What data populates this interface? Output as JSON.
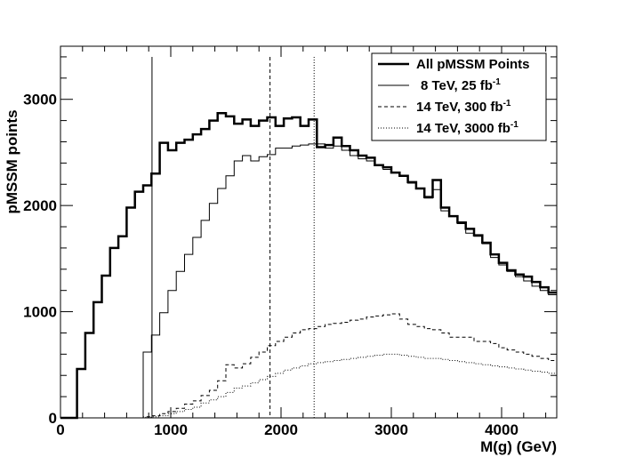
{
  "chart_data": {
    "type": "line",
    "title": "",
    "xlabel": "M(g) (GeV)",
    "ylabel": "pMSSM points",
    "xlim": [
      0,
      4500
    ],
    "ylim": [
      0,
      3500
    ],
    "xticks": [
      0,
      1000,
      2000,
      3000,
      4000
    ],
    "xtick_labels": [
      "0",
      "1000",
      "2000",
      "3000",
      "4000"
    ],
    "yticks": [
      0,
      1000,
      2000,
      3000
    ],
    "ytick_labels": [
      "0",
      "1000",
      "2000",
      "3000"
    ],
    "bin_width": 75,
    "bin_start": 0,
    "legend_position": "top-right",
    "series": [
      {
        "name": "All pMSSM Points",
        "style": "solid-thick",
        "values": [
          0,
          0,
          460,
          800,
          1090,
          1340,
          1600,
          1710,
          1980,
          2130,
          2190,
          2300,
          2590,
          2520,
          2590,
          2620,
          2670,
          2720,
          2800,
          2870,
          2840,
          2770,
          2810,
          2750,
          2800,
          2830,
          2750,
          2820,
          2830,
          2750,
          2810,
          2550,
          2570,
          2640,
          2560,
          2520,
          2470,
          2450,
          2380,
          2360,
          2310,
          2280,
          2220,
          2160,
          2080,
          2240,
          1980,
          1900,
          1840,
          1780,
          1720,
          1650,
          1540,
          1460,
          1390,
          1350,
          1330,
          1280,
          1230,
          1180
        ]
      },
      {
        "name": "8 TeV,   25 fb",
        "name_sup": "-1",
        "style": "solid-thin",
        "values": [
          0,
          0,
          0,
          0,
          0,
          0,
          0,
          0,
          0,
          0,
          620,
          780,
          990,
          1200,
          1380,
          1540,
          1700,
          1860,
          2020,
          2160,
          2280,
          2420,
          2470,
          2420,
          2460,
          2480,
          2540,
          2540,
          2560,
          2570,
          2580,
          2580,
          2540,
          2560,
          2520,
          2470,
          2440,
          2420,
          2380,
          2340,
          2310,
          2280,
          2210,
          2160,
          2070,
          2150,
          1950,
          1900,
          1830,
          1740,
          1710,
          1640,
          1510,
          1440,
          1380,
          1330,
          1290,
          1240,
          1200,
          1160
        ]
      },
      {
        "name": "14 TeV,  300 fb",
        "name_sup": "-1",
        "style": "dashed",
        "values": [
          0,
          0,
          0,
          0,
          0,
          0,
          0,
          0,
          0,
          0,
          10,
          20,
          40,
          60,
          90,
          130,
          160,
          210,
          260,
          350,
          500,
          470,
          510,
          570,
          620,
          680,
          720,
          760,
          800,
          830,
          840,
          860,
          880,
          890,
          900,
          920,
          930,
          950,
          960,
          970,
          980,
          930,
          880,
          860,
          840,
          830,
          800,
          760,
          760,
          760,
          720,
          720,
          700,
          660,
          640,
          620,
          600,
          580,
          560,
          540
        ]
      },
      {
        "name": "14 TeV, 3000 fb",
        "name_sup": "-1",
        "style": "dotted",
        "values": [
          0,
          0,
          0,
          0,
          0,
          0,
          0,
          0,
          0,
          0,
          5,
          10,
          20,
          40,
          60,
          80,
          100,
          140,
          170,
          200,
          240,
          280,
          300,
          330,
          360,
          390,
          420,
          450,
          470,
          490,
          510,
          520,
          530,
          540,
          550,
          560,
          570,
          580,
          590,
          600,
          600,
          590,
          580,
          570,
          560,
          560,
          550,
          540,
          530,
          520,
          510,
          500,
          490,
          480,
          470,
          460,
          450,
          440,
          430,
          420
        ]
      }
    ],
    "vertical_lines": [
      {
        "x": 830,
        "style": "solid-thin"
      },
      {
        "x": 1900,
        "style": "dashed"
      },
      {
        "x": 2300,
        "style": "dotted"
      }
    ]
  }
}
